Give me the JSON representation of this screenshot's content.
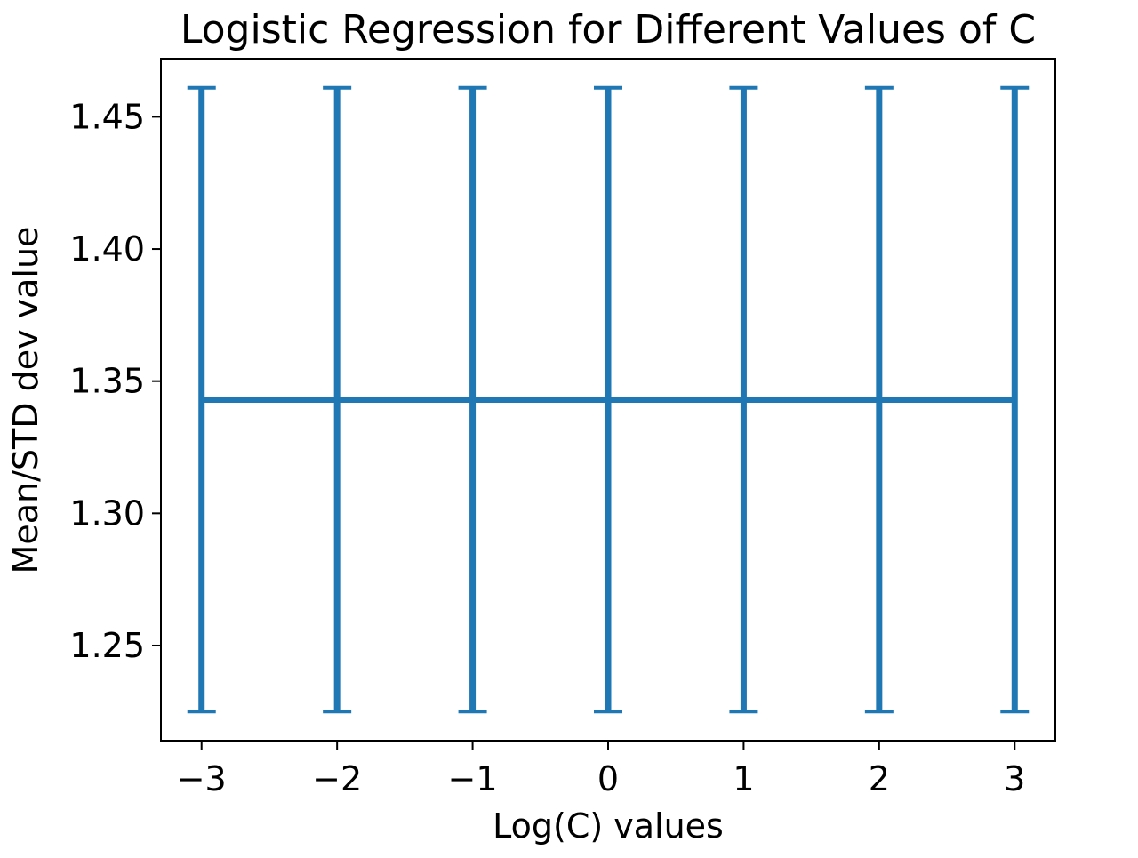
{
  "chart_data": {
    "type": "line",
    "title": "Logistic Regression for Different Values of C",
    "xlabel": "Log(C) values",
    "ylabel": "Mean/STD dev value",
    "x": [
      -3,
      -2,
      -1,
      0,
      1,
      2,
      3
    ],
    "series": [
      {
        "values": [
          1.343,
          1.343,
          1.343,
          1.343,
          1.343,
          1.343,
          1.343
        ],
        "error": [
          0.118,
          0.118,
          0.118,
          0.118,
          0.118,
          0.118,
          0.118
        ]
      }
    ],
    "xlim": [
      -3.3,
      3.3
    ],
    "ylim": [
      1.214,
      1.472
    ],
    "xticks": [
      -3,
      -2,
      -1,
      0,
      1,
      2,
      3
    ],
    "xtick_labels": [
      "−3",
      "−2",
      "−1",
      "0",
      "1",
      "2",
      "3"
    ],
    "yticks": [
      1.25,
      1.3,
      1.35,
      1.4,
      1.45
    ],
    "ytick_labels": [
      "1.25",
      "1.30",
      "1.35",
      "1.40",
      "1.45"
    ],
    "grid": false,
    "legend": "none",
    "colors": {
      "series": "#1f77b4",
      "axes": "#000000"
    }
  }
}
